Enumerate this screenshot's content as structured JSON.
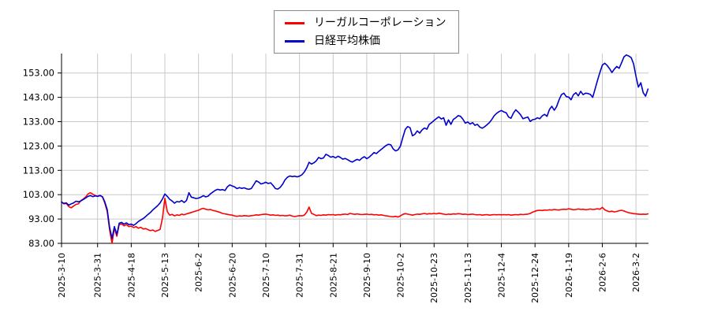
{
  "chart_data": {
    "type": "line",
    "title": "",
    "grid": true,
    "legend_position": "top-center",
    "y_axis": {
      "min": 83,
      "max": 161,
      "tick_values": [
        83,
        93,
        103,
        113,
        123,
        133,
        143,
        153
      ],
      "tick_labels": [
        "83.00",
        "93.00",
        "103.00",
        "113.00",
        "123.00",
        "133.00",
        "143.00",
        "153.00"
      ]
    },
    "x_axis": {
      "tick_labels": [
        "2025-3-10",
        "2025-3-31",
        "2025-4-18",
        "2025-5-13",
        "2025-6-2",
        "2025-6-20",
        "2025-7-10",
        "2025-7-31",
        "2025-8-21",
        "2025-9-10",
        "2025-10-2",
        "2025-10-23",
        "2025-11-13",
        "2025-12-4",
        "2025-12-24",
        "2026-1-19",
        "2026-2-6",
        "2026-3-2"
      ],
      "tick_indices": [
        0,
        15,
        29,
        43,
        57,
        71,
        85,
        99,
        113,
        127,
        141,
        155,
        169,
        183,
        197,
        211,
        225,
        239
      ],
      "total_points": 245
    },
    "colors": {
      "grid": "#c9c9c9",
      "axis": "#000000",
      "background": "#ffffff"
    },
    "series": [
      {
        "name": "リーガルコーポレーション",
        "color": "#ff0000",
        "values": [
          100.0,
          99.2,
          99.4,
          98.1,
          97.6,
          98.3,
          99.0,
          99.2,
          100.5,
          101.2,
          102.0,
          103.3,
          103.8,
          103.2,
          102.6,
          102.4,
          102.7,
          102.1,
          99.6,
          96.1,
          88.6,
          83.0,
          89.3,
          85.9,
          90.7,
          91.0,
          90.2,
          90.7,
          89.9,
          90.1,
          89.5,
          89.9,
          89.2,
          89.6,
          88.9,
          89.1,
          88.6,
          88.2,
          88.5,
          87.9,
          88.3,
          88.7,
          93.5,
          101.5,
          96.0,
          94.6,
          94.9,
          94.3,
          94.7,
          94.5,
          95.0,
          94.7,
          95.1,
          95.4,
          95.7,
          96.0,
          96.3,
          96.6,
          97.1,
          97.4,
          97.0,
          96.8,
          96.9,
          96.5,
          96.3,
          96.0,
          95.7,
          95.3,
          95.1,
          94.9,
          94.7,
          94.6,
          94.3,
          94.1,
          94.3,
          94.2,
          94.4,
          94.3,
          94.2,
          94.4,
          94.5,
          94.7,
          94.6,
          94.8,
          94.9,
          95.0,
          94.8,
          94.6,
          94.7,
          94.5,
          94.6,
          94.4,
          94.5,
          94.3,
          94.4,
          94.6,
          94.2,
          94.0,
          94.2,
          94.4,
          94.3,
          94.6,
          95.8,
          97.9,
          95.3,
          94.9,
          94.4,
          94.6,
          94.5,
          94.7,
          94.6,
          94.8,
          94.7,
          94.8,
          94.6,
          94.8,
          94.7,
          94.9,
          95.0,
          94.8,
          95.3,
          95.1,
          94.9,
          95.1,
          94.9,
          94.8,
          94.9,
          95.0,
          94.8,
          94.9,
          94.7,
          94.8,
          94.6,
          94.7,
          94.5,
          94.3,
          94.2,
          94.0,
          93.9,
          94.1,
          93.8,
          94.3,
          94.9,
          95.2,
          95.0,
          94.8,
          94.6,
          94.8,
          95.0,
          94.9,
          95.1,
          95.3,
          95.0,
          95.2,
          95.1,
          95.3,
          95.1,
          95.4,
          95.2,
          95.0,
          94.8,
          95.0,
          94.9,
          95.1,
          95.0,
          95.2,
          95.1,
          94.9,
          95.0,
          94.8,
          94.9,
          95.0,
          94.8,
          94.7,
          94.8,
          94.6,
          94.7,
          94.8,
          94.6,
          94.7,
          94.8,
          94.7,
          94.8,
          94.7,
          94.8,
          94.7,
          94.8,
          94.6,
          94.7,
          94.8,
          94.7,
          94.9,
          94.8,
          94.9,
          95.0,
          95.3,
          95.8,
          96.2,
          96.5,
          96.6,
          96.5,
          96.7,
          96.6,
          96.8,
          96.7,
          96.9,
          96.8,
          96.7,
          96.9,
          97.0,
          96.9,
          97.2,
          97.0,
          96.8,
          96.9,
          97.1,
          96.9,
          97.0,
          96.8,
          96.9,
          97.1,
          96.9,
          97.0,
          97.2,
          97.0,
          97.8,
          96.8,
          96.3,
          96.0,
          96.2,
          95.9,
          96.1,
          96.4,
          96.6,
          96.3,
          95.9,
          95.6,
          95.4,
          95.2,
          95.1,
          95.0,
          94.9,
          95.0,
          94.9,
          95.1
        ]
      },
      {
        "name": "日経平均株価",
        "color": "#0000cc",
        "values": [
          100.0,
          99.4,
          99.6,
          98.7,
          99.2,
          99.6,
          100.3,
          100.1,
          100.4,
          101.0,
          101.6,
          102.3,
          102.6,
          102.2,
          102.5,
          102.3,
          102.6,
          102.2,
          100.1,
          96.9,
          89.6,
          85.0,
          89.9,
          86.6,
          91.3,
          91.6,
          90.9,
          91.4,
          90.7,
          90.9,
          90.4,
          91.1,
          92.0,
          92.6,
          93.2,
          94.0,
          94.9,
          95.7,
          96.8,
          97.6,
          98.5,
          99.6,
          101.3,
          103.3,
          102.3,
          101.1,
          100.4,
          99.5,
          100.2,
          100.0,
          100.6,
          99.8,
          100.6,
          103.8,
          102.0,
          101.7,
          101.4,
          101.6,
          102.0,
          102.6,
          102.1,
          102.4,
          103.4,
          104.1,
          104.8,
          105.2,
          104.9,
          105.1,
          104.7,
          106.2,
          107.0,
          106.6,
          106.2,
          105.5,
          105.9,
          105.6,
          105.8,
          105.4,
          105.2,
          105.6,
          107.1,
          108.7,
          108.2,
          107.4,
          107.7,
          108.1,
          107.6,
          107.9,
          106.8,
          105.5,
          105.3,
          106.0,
          107.3,
          109.1,
          110.2,
          110.7,
          110.4,
          110.6,
          110.3,
          110.6,
          111.2,
          112.3,
          114.0,
          116.3,
          115.6,
          116.1,
          116.9,
          118.3,
          117.8,
          118.1,
          119.6,
          119.1,
          118.4,
          118.7,
          118.1,
          118.8,
          118.3,
          117.6,
          117.9,
          117.4,
          116.8,
          116.4,
          117.0,
          117.5,
          117.1,
          118.0,
          118.6,
          117.8,
          118.4,
          119.3,
          120.3,
          119.9,
          120.8,
          121.6,
          122.4,
          123.2,
          123.7,
          123.5,
          121.8,
          121.0,
          121.4,
          123.0,
          126.5,
          129.8,
          131.0,
          130.5,
          127.2,
          127.8,
          129.2,
          128.3,
          129.6,
          130.4,
          129.9,
          131.9,
          132.6,
          133.5,
          134.3,
          135.0,
          134.1,
          134.6,
          131.5,
          133.7,
          131.9,
          133.9,
          134.6,
          135.5,
          135.2,
          134.0,
          132.4,
          132.9,
          132.0,
          132.6,
          131.5,
          131.9,
          130.8,
          130.3,
          130.9,
          131.7,
          132.6,
          133.9,
          135.4,
          136.4,
          137.1,
          137.6,
          137.0,
          136.7,
          134.9,
          134.4,
          136.5,
          137.9,
          136.9,
          135.8,
          134.2,
          134.6,
          134.9,
          133.1,
          133.8,
          134.0,
          134.6,
          134.2,
          135.4,
          136.0,
          135.2,
          138.0,
          139.3,
          137.7,
          139.2,
          142.0,
          144.1,
          144.7,
          143.3,
          143.1,
          142.0,
          144.1,
          144.9,
          143.6,
          145.5,
          144.1,
          144.7,
          144.6,
          144.2,
          143.0,
          146.5,
          150.0,
          153.3,
          156.2,
          157.0,
          156.1,
          154.8,
          153.2,
          154.6,
          155.7,
          154.9,
          157.2,
          159.6,
          160.4,
          160.0,
          159.3,
          156.8,
          151.6,
          147.2,
          149.0,
          144.9,
          143.5,
          146.4
        ]
      }
    ]
  }
}
